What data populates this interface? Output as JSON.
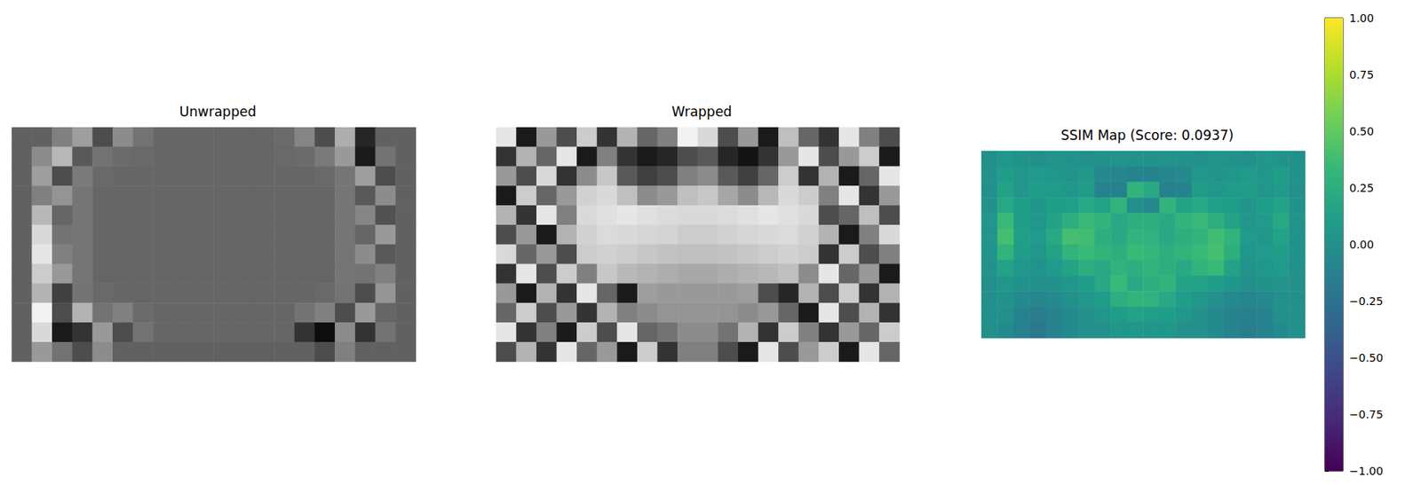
{
  "chart_data": [
    {
      "type": "heatmap",
      "title": "Unwrapped",
      "color": "gray",
      "color_range": [
        0,
        1
      ],
      "tick_labels": false,
      "cells": [
        [
          0.38,
          0.38,
          0.5,
          0.62,
          0.3,
          0.55,
          0.45,
          0.4,
          0.4,
          0.4,
          0.4,
          0.4,
          0.4,
          0.42,
          0.52,
          0.3,
          0.68,
          0.15,
          0.38,
          0.38
        ],
        [
          0.38,
          0.55,
          0.72,
          0.35,
          0.45,
          0.42,
          0.41,
          0.4,
          0.4,
          0.4,
          0.4,
          0.4,
          0.4,
          0.41,
          0.42,
          0.48,
          0.6,
          0.1,
          0.45,
          0.38
        ],
        [
          0.38,
          0.62,
          0.3,
          0.48,
          0.41,
          0.4,
          0.4,
          0.4,
          0.4,
          0.4,
          0.4,
          0.4,
          0.4,
          0.4,
          0.4,
          0.41,
          0.46,
          0.62,
          0.3,
          0.38
        ],
        [
          0.38,
          0.5,
          0.58,
          0.46,
          0.4,
          0.4,
          0.4,
          0.4,
          0.4,
          0.4,
          0.4,
          0.4,
          0.4,
          0.4,
          0.4,
          0.4,
          0.46,
          0.35,
          0.55,
          0.38
        ],
        [
          0.38,
          0.72,
          0.4,
          0.46,
          0.4,
          0.4,
          0.4,
          0.4,
          0.4,
          0.4,
          0.4,
          0.4,
          0.4,
          0.4,
          0.4,
          0.4,
          0.46,
          0.52,
          0.32,
          0.38
        ],
        [
          0.38,
          0.85,
          0.45,
          0.46,
          0.4,
          0.4,
          0.4,
          0.4,
          0.4,
          0.4,
          0.4,
          0.4,
          0.4,
          0.4,
          0.4,
          0.4,
          0.46,
          0.4,
          0.6,
          0.38
        ],
        [
          0.38,
          0.9,
          0.5,
          0.46,
          0.4,
          0.4,
          0.4,
          0.4,
          0.4,
          0.4,
          0.4,
          0.4,
          0.4,
          0.4,
          0.4,
          0.4,
          0.46,
          0.55,
          0.35,
          0.38
        ],
        [
          0.38,
          0.8,
          0.6,
          0.46,
          0.4,
          0.4,
          0.4,
          0.4,
          0.4,
          0.4,
          0.4,
          0.4,
          0.4,
          0.4,
          0.4,
          0.4,
          0.46,
          0.45,
          0.5,
          0.38
        ],
        [
          0.38,
          0.7,
          0.25,
          0.45,
          0.41,
          0.4,
          0.4,
          0.4,
          0.4,
          0.4,
          0.4,
          0.4,
          0.4,
          0.4,
          0.4,
          0.41,
          0.45,
          0.3,
          0.58,
          0.38
        ],
        [
          0.38,
          0.95,
          0.3,
          0.7,
          0.45,
          0.5,
          0.42,
          0.4,
          0.4,
          0.4,
          0.4,
          0.4,
          0.4,
          0.4,
          0.45,
          0.5,
          0.3,
          0.6,
          0.4,
          0.38
        ],
        [
          0.38,
          0.85,
          0.1,
          0.2,
          0.6,
          0.3,
          0.45,
          0.4,
          0.4,
          0.4,
          0.4,
          0.4,
          0.4,
          0.4,
          0.2,
          0.05,
          0.55,
          0.2,
          0.45,
          0.38
        ],
        [
          0.38,
          0.6,
          0.45,
          0.3,
          0.55,
          0.38,
          0.38,
          0.38,
          0.38,
          0.38,
          0.38,
          0.38,
          0.38,
          0.38,
          0.38,
          0.3,
          0.5,
          0.38,
          0.38,
          0.38
        ]
      ]
    },
    {
      "type": "heatmap",
      "title": "Wrapped",
      "color": "gray",
      "color_range": [
        0,
        1
      ],
      "tick_labels": false,
      "cells": [
        [
          0.9,
          0.1,
          0.6,
          0.3,
          0.8,
          0.2,
          0.7,
          0.4,
          0.5,
          0.95,
          0.85,
          0.3,
          0.6,
          0.1,
          0.75,
          0.4,
          0.2,
          0.9,
          0.5,
          0.3
        ],
        [
          0.2,
          0.7,
          0.4,
          0.9,
          0.1,
          0.5,
          0.2,
          0.1,
          0.15,
          0.3,
          0.35,
          0.15,
          0.08,
          0.2,
          0.6,
          0.9,
          0.3,
          0.6,
          0.8,
          0.1
        ],
        [
          0.6,
          0.3,
          0.85,
          0.2,
          0.55,
          0.78,
          0.35,
          0.25,
          0.3,
          0.5,
          0.55,
          0.35,
          0.25,
          0.4,
          0.8,
          0.2,
          0.7,
          0.1,
          0.4,
          0.9
        ],
        [
          0.1,
          0.8,
          0.4,
          0.6,
          0.82,
          0.85,
          0.75,
          0.55,
          0.6,
          0.75,
          0.78,
          0.65,
          0.55,
          0.72,
          0.85,
          0.8,
          0.5,
          0.9,
          0.2,
          0.6
        ],
        [
          0.7,
          0.2,
          0.9,
          0.5,
          0.85,
          0.88,
          0.9,
          0.88,
          0.86,
          0.85,
          0.85,
          0.86,
          0.88,
          0.9,
          0.88,
          0.85,
          0.3,
          0.4,
          0.75,
          0.3
        ],
        [
          0.3,
          0.6,
          0.1,
          0.7,
          0.82,
          0.86,
          0.85,
          0.84,
          0.83,
          0.8,
          0.8,
          0.82,
          0.84,
          0.85,
          0.86,
          0.82,
          0.7,
          0.1,
          0.5,
          0.85
        ],
        [
          0.85,
          0.4,
          0.6,
          0.3,
          0.8,
          0.82,
          0.8,
          0.78,
          0.76,
          0.75,
          0.75,
          0.76,
          0.78,
          0.8,
          0.82,
          0.8,
          0.2,
          0.8,
          0.3,
          0.5
        ],
        [
          0.2,
          0.9,
          0.3,
          0.8,
          0.5,
          0.78,
          0.72,
          0.7,
          0.68,
          0.66,
          0.66,
          0.68,
          0.7,
          0.72,
          0.75,
          0.55,
          0.9,
          0.4,
          0.6,
          0.1
        ],
        [
          0.6,
          0.1,
          0.7,
          0.2,
          0.9,
          0.4,
          0.1,
          0.62,
          0.6,
          0.6,
          0.6,
          0.6,
          0.62,
          0.3,
          0.15,
          0.7,
          0.3,
          0.8,
          0.2,
          0.7
        ],
        [
          0.4,
          0.8,
          0.3,
          0.6,
          0.2,
          0.7,
          0.5,
          0.55,
          0.58,
          0.58,
          0.58,
          0.58,
          0.55,
          0.6,
          0.4,
          0.1,
          0.9,
          0.3,
          0.7,
          0.2
        ],
        [
          0.9,
          0.2,
          0.5,
          0.1,
          0.8,
          0.3,
          0.9,
          0.4,
          0.45,
          0.55,
          0.55,
          0.45,
          0.7,
          0.2,
          0.8,
          0.5,
          0.2,
          0.6,
          0.4,
          0.8
        ],
        [
          0.3,
          0.7,
          0.2,
          0.9,
          0.4,
          0.6,
          0.1,
          0.8,
          0.2,
          0.5,
          0.5,
          0.3,
          0.1,
          0.9,
          0.3,
          0.6,
          0.8,
          0.1,
          0.9,
          0.4
        ]
      ]
    },
    {
      "type": "heatmap",
      "title": "SSIM Map (Score: 0.0937)",
      "color": "viridis",
      "tick_labels": false,
      "colorbar": {
        "range": [
          -1,
          1
        ],
        "ticks": [
          {
            "value": -1,
            "label": "−1.00"
          },
          {
            "value": -0.75,
            "label": "−0.75"
          },
          {
            "value": -0.5,
            "label": "−0.50"
          },
          {
            "value": -0.25,
            "label": "−0.25"
          },
          {
            "value": 0,
            "label": "0.00"
          },
          {
            "value": 0.25,
            "label": "0.25"
          },
          {
            "value": 0.5,
            "label": "0.50"
          },
          {
            "value": 0.75,
            "label": "0.75"
          },
          {
            "value": 1,
            "label": "1.00"
          }
        ]
      },
      "cells": [
        [
          0.0,
          0.05,
          0.02,
          0.0,
          0.03,
          0.02,
          0.0,
          0.02,
          0.03,
          0.02,
          0.02,
          0.03,
          0.02,
          0.0,
          0.03,
          0.02,
          0.0,
          0.05,
          0.02,
          0.0
        ],
        [
          0.02,
          0.1,
          0.05,
          0.08,
          0.05,
          0.03,
          0.06,
          -0.05,
          -0.08,
          -0.1,
          -0.1,
          -0.08,
          -0.05,
          0.05,
          0.03,
          0.05,
          0.08,
          0.05,
          0.1,
          0.02
        ],
        [
          0.0,
          0.15,
          0.05,
          0.1,
          0.08,
          0.05,
          0.1,
          -0.1,
          -0.12,
          0.3,
          0.2,
          -0.12,
          -0.1,
          0.1,
          0.05,
          0.08,
          0.1,
          0.05,
          0.08,
          0.0
        ],
        [
          0.02,
          0.2,
          0.1,
          0.05,
          0.1,
          0.12,
          0.2,
          0.15,
          0.3,
          0.0,
          -0.05,
          0.3,
          0.15,
          0.2,
          0.12,
          0.1,
          0.05,
          0.1,
          0.15,
          0.02
        ],
        [
          0.05,
          0.35,
          0.1,
          0.05,
          0.15,
          0.25,
          0.35,
          0.3,
          0.2,
          0.25,
          0.25,
          0.2,
          0.3,
          0.35,
          0.25,
          0.15,
          0.05,
          0.08,
          0.2,
          0.03
        ],
        [
          0.05,
          0.4,
          0.12,
          0.08,
          0.2,
          0.4,
          0.38,
          0.25,
          0.2,
          0.3,
          0.28,
          0.2,
          0.25,
          0.3,
          0.38,
          0.3,
          0.08,
          0.05,
          0.15,
          0.02
        ],
        [
          0.03,
          0.3,
          0.1,
          0.05,
          0.15,
          0.3,
          0.35,
          0.3,
          0.25,
          0.35,
          0.32,
          0.25,
          0.3,
          0.35,
          0.4,
          0.25,
          0.05,
          0.08,
          0.1,
          0.02
        ],
        [
          0.02,
          0.15,
          0.05,
          0.02,
          0.08,
          0.15,
          0.25,
          0.2,
          0.3,
          0.25,
          0.3,
          0.25,
          0.2,
          0.3,
          0.35,
          0.15,
          0.03,
          0.05,
          0.08,
          0.0
        ],
        [
          0.0,
          0.05,
          0.02,
          0.0,
          0.0,
          0.05,
          0.1,
          0.2,
          0.35,
          0.2,
          0.25,
          0.3,
          0.15,
          0.15,
          0.1,
          0.05,
          0.0,
          0.02,
          0.03,
          0.0
        ],
        [
          0.0,
          0.02,
          -0.05,
          -0.08,
          -0.05,
          0.0,
          0.05,
          0.1,
          0.25,
          0.3,
          0.28,
          0.2,
          0.1,
          0.05,
          0.0,
          -0.05,
          -0.08,
          -0.05,
          0.0,
          0.0
        ],
        [
          0.0,
          0.0,
          -0.1,
          -0.15,
          -0.1,
          -0.05,
          0.0,
          0.05,
          0.1,
          0.15,
          0.12,
          0.1,
          0.05,
          0.0,
          -0.05,
          -0.1,
          -0.12,
          -0.1,
          0.0,
          0.0
        ],
        [
          0.0,
          -0.05,
          -0.12,
          -0.2,
          -0.1,
          -0.05,
          0.0,
          0.0,
          0.05,
          0.05,
          0.05,
          0.05,
          0.0,
          0.0,
          -0.05,
          -0.1,
          -0.15,
          -0.1,
          -0.05,
          0.0
        ]
      ]
    }
  ]
}
